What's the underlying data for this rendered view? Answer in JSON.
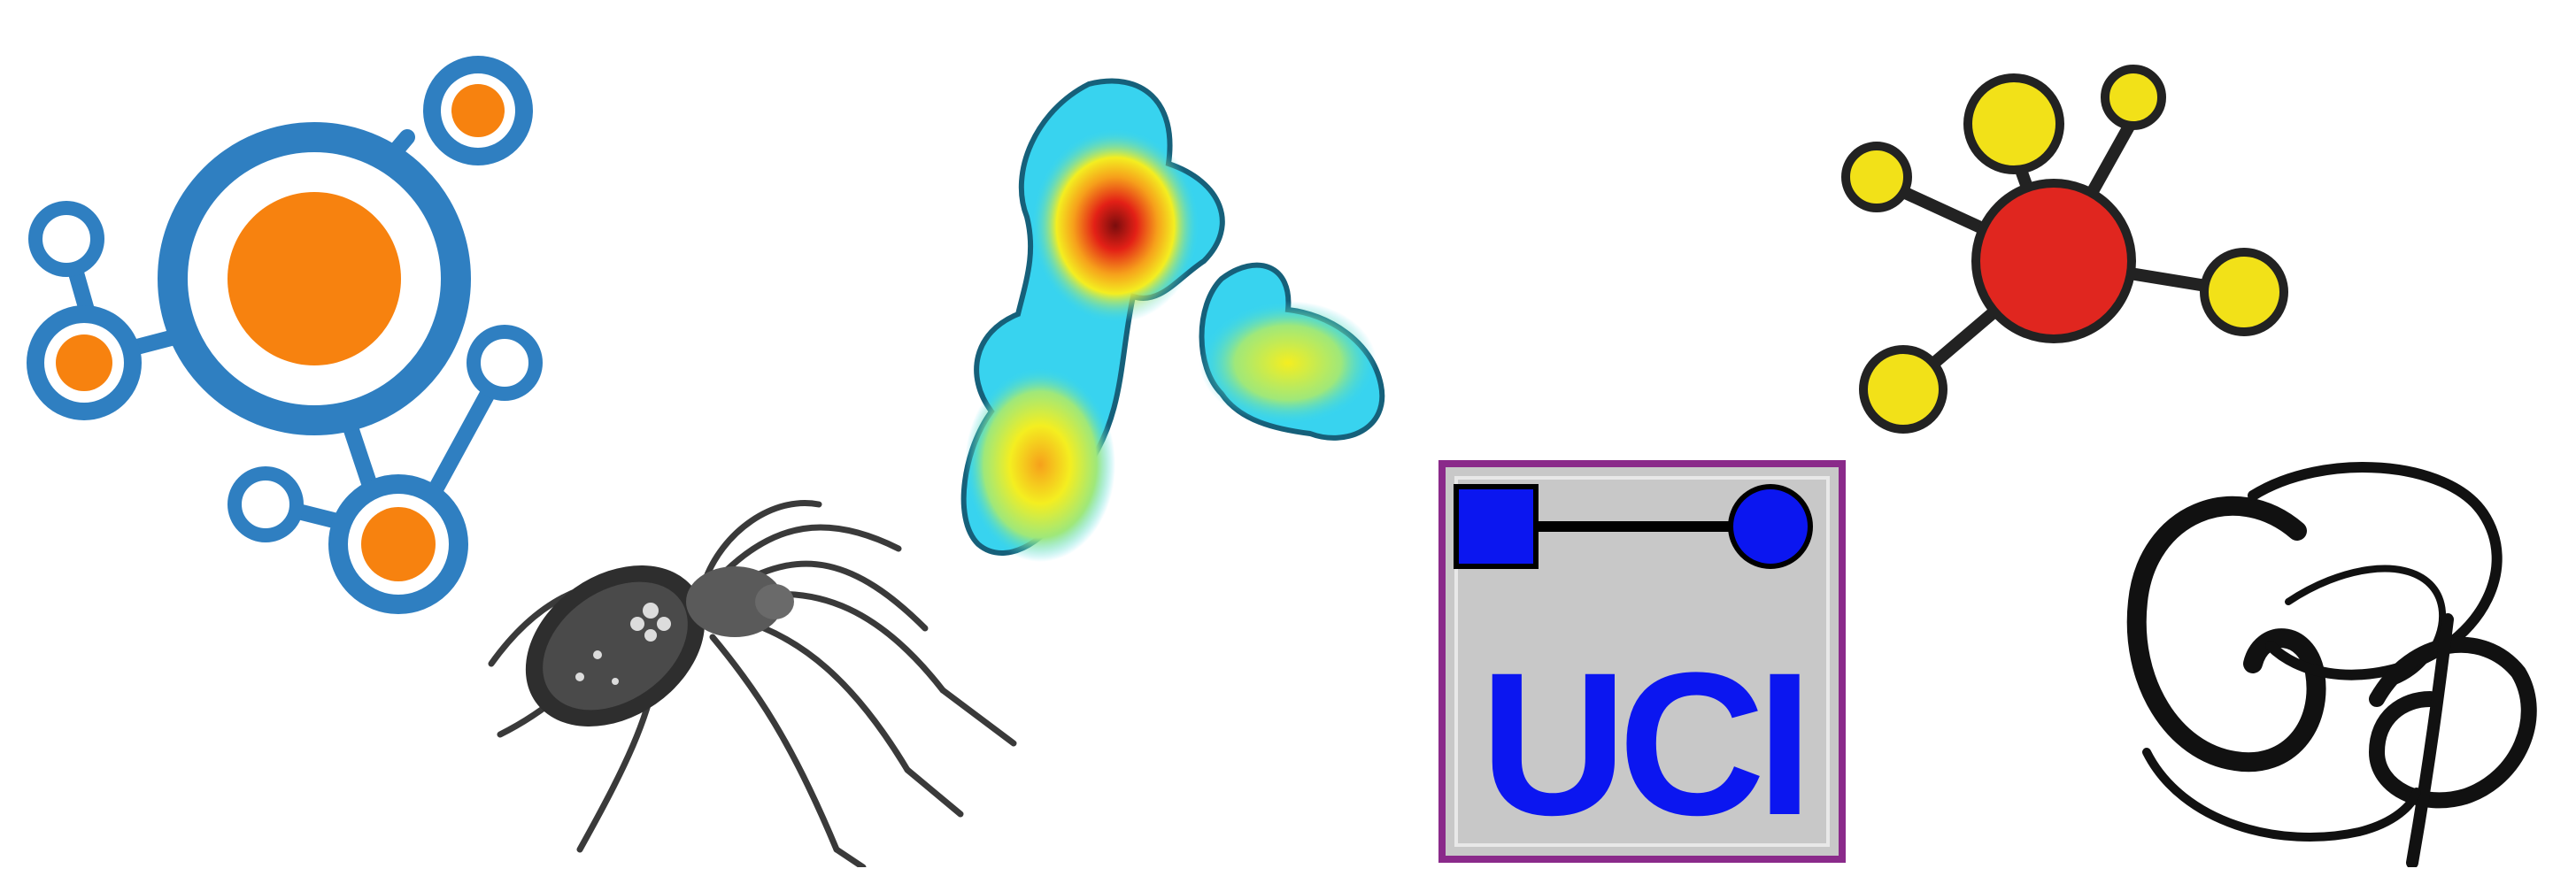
{
  "logos": [
    {
      "icon": "network-hub-orange-icon",
      "colors": {
        "ring": "#2f7fc1",
        "fill": "#f7820f"
      }
    },
    {
      "icon": "spider-engraving-icon",
      "colors": {
        "ink": "#3a3a3a"
      }
    },
    {
      "icon": "density-heatmap-icon",
      "colors": {
        "outline": "#16607a",
        "low": "#34d6f0",
        "mid": "#f4ee20",
        "high": "#e32016",
        "peak": "#7a0d0d"
      }
    },
    {
      "icon": "uci-network-logo-icon",
      "text": "UCI",
      "colors": {
        "frame": "#8a2a8a",
        "panel": "#c8c8c8",
        "blue": "#0b16f0"
      }
    },
    {
      "icon": "network-hub-yellow-red-icon",
      "colors": {
        "center": "#e0261f",
        "nodes": "#f2e118",
        "stroke": "#222222"
      }
    },
    {
      "icon": "gephi-script-monogram-icon",
      "text": "Gφ",
      "colors": {
        "ink": "#111111"
      }
    }
  ]
}
